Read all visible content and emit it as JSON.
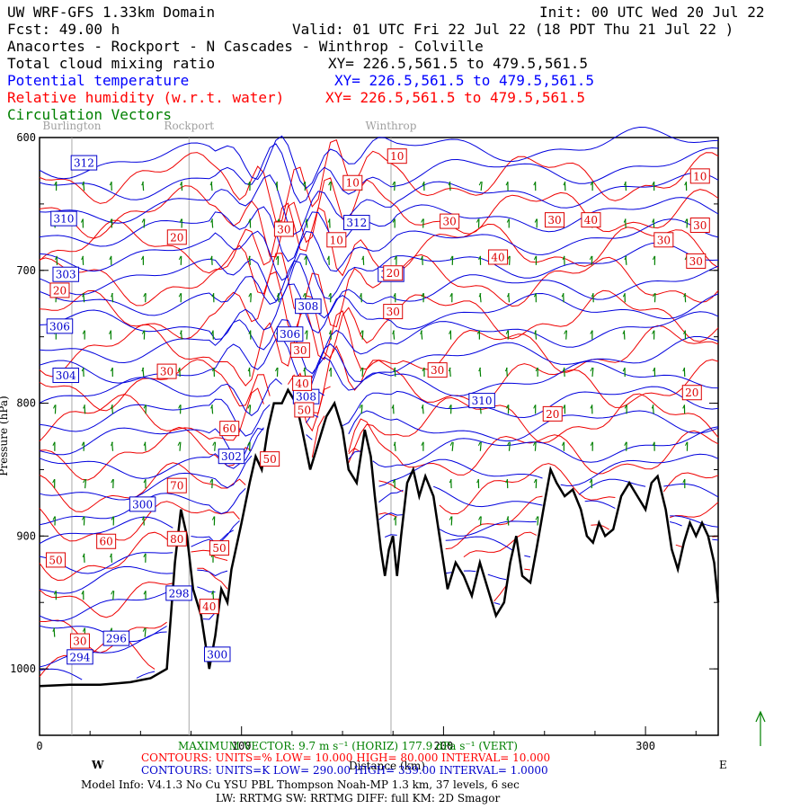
{
  "header": {
    "model": "UW WRF-GFS 1.33km Domain",
    "init": "Init: 00 UTC Wed 20 Jul 22",
    "fcst": "Fcst:   49.00 h",
    "valid": "Valid: 01 UTC Fri 22 Jul 22   (18 PDT Thu 21 Jul 22  )",
    "route": "Anacortes - Rockport - N Cascades - Winthrop - Colville",
    "fields": [
      {
        "name": "Total cloud mixing ratio",
        "xy": "XY= 226.5,561.5 to 479.5,561.5",
        "color": "#000000"
      },
      {
        "name": "Potential temperature",
        "xy": "XY= 226.5,561.5 to 479.5,561.5",
        "color": "#0000ff"
      },
      {
        "name": "Relative humidity (w.r.t. water)",
        "xy": "XY= 226.5,561.5 to 479.5,561.5",
        "color": "#ff0000"
      },
      {
        "name": "Circulation Vectors",
        "xy": "",
        "color": "#008000"
      }
    ]
  },
  "locations": [
    {
      "name": "Burlington",
      "km": 16
    },
    {
      "name": "Rockport",
      "km": 74
    },
    {
      "name": "Winthrop",
      "km": 174
    }
  ],
  "chart_data": {
    "type": "cross-section",
    "x_axis": {
      "label": "Distance (km)",
      "range": [
        0,
        336
      ],
      "ticks": [
        0,
        100,
        200,
        300
      ],
      "tick_labels": [
        "0",
        "100",
        "200",
        "300"
      ],
      "left": "W",
      "right": "E"
    },
    "y_axis": {
      "label": "Pressure (hPa)",
      "range": [
        1050,
        600
      ],
      "ticks": [
        600,
        700,
        800,
        900,
        1000
      ],
      "tick_labels": [
        "600",
        "700",
        "800",
        "900",
        "1000"
      ]
    },
    "terrain": [
      [
        0,
        1013
      ],
      [
        15,
        1012
      ],
      [
        30,
        1012
      ],
      [
        45,
        1010
      ],
      [
        55,
        1007
      ],
      [
        63,
        1000
      ],
      [
        67,
        920
      ],
      [
        70,
        880
      ],
      [
        73,
        900
      ],
      [
        76,
        940
      ],
      [
        80,
        960
      ],
      [
        84,
        1000
      ],
      [
        87,
        975
      ],
      [
        90,
        940
      ],
      [
        93,
        950
      ],
      [
        95,
        925
      ],
      [
        100,
        890
      ],
      [
        104,
        860
      ],
      [
        107,
        840
      ],
      [
        110,
        850
      ],
      [
        113,
        820
      ],
      [
        116,
        800
      ],
      [
        120,
        800
      ],
      [
        123,
        790
      ],
      [
        127,
        800
      ],
      [
        130,
        820
      ],
      [
        134,
        850
      ],
      [
        138,
        830
      ],
      [
        142,
        810
      ],
      [
        146,
        800
      ],
      [
        150,
        820
      ],
      [
        153,
        850
      ],
      [
        157,
        860
      ],
      [
        161,
        820
      ],
      [
        164,
        840
      ],
      [
        166,
        870
      ],
      [
        169,
        910
      ],
      [
        171,
        930
      ],
      [
        173,
        910
      ],
      [
        175,
        900
      ],
      [
        177,
        930
      ],
      [
        179,
        900
      ],
      [
        182,
        860
      ],
      [
        185,
        850
      ],
      [
        188,
        870
      ],
      [
        191,
        855
      ],
      [
        195,
        870
      ],
      [
        198,
        900
      ],
      [
        202,
        940
      ],
      [
        206,
        920
      ],
      [
        210,
        930
      ],
      [
        214,
        945
      ],
      [
        218,
        920
      ],
      [
        222,
        940
      ],
      [
        226,
        960
      ],
      [
        230,
        950
      ],
      [
        233,
        920
      ],
      [
        236,
        900
      ],
      [
        239,
        930
      ],
      [
        243,
        935
      ],
      [
        246,
        910
      ],
      [
        250,
        875
      ],
      [
        253,
        850
      ],
      [
        256,
        860
      ],
      [
        260,
        870
      ],
      [
        264,
        865
      ],
      [
        268,
        880
      ],
      [
        271,
        900
      ],
      [
        274,
        905
      ],
      [
        277,
        890
      ],
      [
        280,
        900
      ],
      [
        284,
        895
      ],
      [
        288,
        870
      ],
      [
        292,
        860
      ],
      [
        296,
        870
      ],
      [
        300,
        880
      ],
      [
        303,
        860
      ],
      [
        306,
        855
      ],
      [
        310,
        880
      ],
      [
        313,
        910
      ],
      [
        316,
        925
      ],
      [
        319,
        905
      ],
      [
        322,
        890
      ],
      [
        325,
        900
      ],
      [
        328,
        890
      ],
      [
        331,
        900
      ],
      [
        334,
        920
      ],
      [
        336,
        950
      ]
    ],
    "theta_labels": [
      {
        "value": "312",
        "km": 22,
        "p": 619
      },
      {
        "value": "310",
        "km": 12,
        "p": 661
      },
      {
        "value": "303",
        "km": 13,
        "p": 703
      },
      {
        "value": "306",
        "km": 10,
        "p": 742
      },
      {
        "value": "304",
        "km": 13,
        "p": 779
      },
      {
        "value": "312",
        "km": 157,
        "p": 664
      },
      {
        "value": "310",
        "km": 174,
        "p": 703
      },
      {
        "value": "308",
        "km": 133,
        "p": 727
      },
      {
        "value": "306",
        "km": 124,
        "p": 748
      },
      {
        "value": "308",
        "km": 132,
        "p": 795
      },
      {
        "value": "310",
        "km": 219,
        "p": 798
      },
      {
        "value": "302",
        "km": 95,
        "p": 840
      },
      {
        "value": "300",
        "km": 51,
        "p": 876
      },
      {
        "value": "298",
        "km": 69,
        "p": 943
      },
      {
        "value": "296",
        "km": 38,
        "p": 977
      },
      {
        "value": "294",
        "km": 20,
        "p": 991
      },
      {
        "value": "300",
        "km": 88,
        "p": 989
      }
    ],
    "rh_labels": [
      {
        "value": "10",
        "km": 177,
        "p": 614
      },
      {
        "value": "10",
        "km": 155,
        "p": 634
      },
      {
        "value": "10",
        "km": 147,
        "p": 677
      },
      {
        "value": "20",
        "km": 68,
        "p": 675
      },
      {
        "value": "20",
        "km": 10,
        "p": 715
      },
      {
        "value": "20",
        "km": 175,
        "p": 702
      },
      {
        "value": "30",
        "km": 121,
        "p": 669
      },
      {
        "value": "30",
        "km": 203,
        "p": 663
      },
      {
        "value": "30",
        "km": 255,
        "p": 662
      },
      {
        "value": "40",
        "km": 273,
        "p": 662
      },
      {
        "value": "30",
        "km": 309,
        "p": 677
      },
      {
        "value": "10",
        "km": 327,
        "p": 629
      },
      {
        "value": "30",
        "km": 327,
        "p": 666
      },
      {
        "value": "30",
        "km": 325,
        "p": 693
      },
      {
        "value": "40",
        "km": 227,
        "p": 690
      },
      {
        "value": "30",
        "km": 175,
        "p": 731
      },
      {
        "value": "30",
        "km": 63,
        "p": 776
      },
      {
        "value": "30",
        "km": 197,
        "p": 775
      },
      {
        "value": "20",
        "km": 323,
        "p": 792
      },
      {
        "value": "20",
        "km": 254,
        "p": 808
      },
      {
        "value": "60",
        "km": 94,
        "p": 819
      },
      {
        "value": "50",
        "km": 114,
        "p": 842
      },
      {
        "value": "30",
        "km": 129,
        "p": 760
      },
      {
        "value": "40",
        "km": 130,
        "p": 785
      },
      {
        "value": "50",
        "km": 131,
        "p": 805
      },
      {
        "value": "70",
        "km": 68,
        "p": 862
      },
      {
        "value": "80",
        "km": 68,
        "p": 902
      },
      {
        "value": "60",
        "km": 33,
        "p": 904
      },
      {
        "value": "50",
        "km": 8,
        "p": 918
      },
      {
        "value": "50",
        "km": 89,
        "p": 909
      },
      {
        "value": "40",
        "km": 84,
        "p": 953
      },
      {
        "value": "30",
        "km": 20,
        "p": 979
      }
    ],
    "vector_columns_km": [
      8,
      22,
      36,
      52,
      70,
      86,
      104,
      118,
      132,
      144,
      160,
      176,
      190,
      204,
      218,
      232,
      246,
      260,
      274,
      290,
      304,
      320
    ],
    "reference_vector": {
      "horiz": "9.7 m s-1",
      "vert": "177.9 dPa s-1"
    }
  },
  "footer": {
    "max_vector": "MAXIMUM VECTOR:   9.7 m s⁻¹ (HORIZ)    177.9 dPa s⁻¹ (VERT)",
    "rh_contours": "CONTOURS:  UNITS=%  LOW=   10.000         HIGH=   80.000         INTERVAL=     10.000",
    "theta_contours": "CONTOURS:  UNITS=K  LOW=   290.00         HIGH=   339.00         INTERVAL=     1.0000",
    "model_info": "Model Info: V4.1.3    No Cu   YSU PBL  Thompson      Noah-MP    1.3 km,   37 levels,     6 sec",
    "physics": "LW: RRTMG SW: RRTMG    DIFF: full    KM: 2D Smagor"
  }
}
